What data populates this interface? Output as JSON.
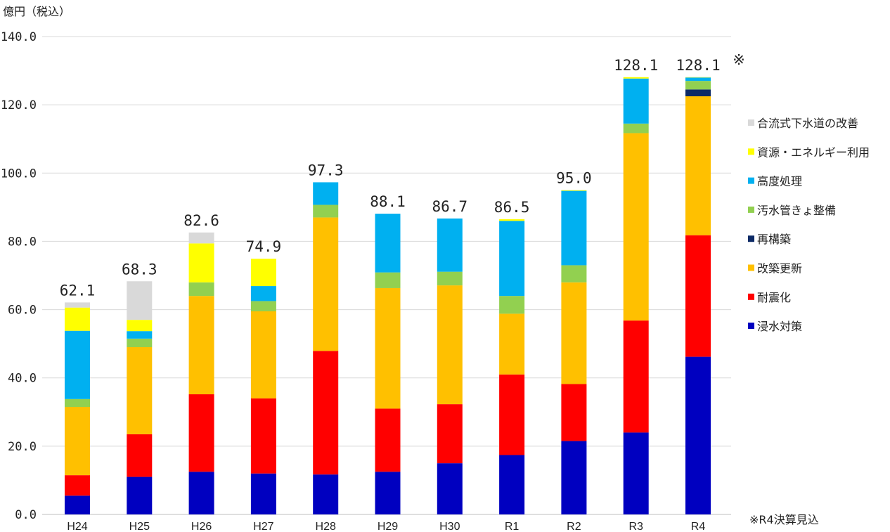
{
  "chart_data": {
    "type": "bar",
    "stacked": true,
    "ylabel": "億円（税込）",
    "ylim": [
      0,
      140
    ],
    "yticks": [
      "0.0",
      "20.0",
      "40.0",
      "60.0",
      "80.0",
      "100.0",
      "120.0",
      "140.0"
    ],
    "grid": true,
    "legend_position": "right",
    "categories": [
      "H24",
      "H25",
      "H26",
      "H27",
      "H28",
      "H29",
      "H30",
      "R1",
      "R2",
      "R3",
      "R4"
    ],
    "totals": [
      "62.1",
      "68.3",
      "82.6",
      "74.9",
      "97.3",
      "88.1",
      "86.7",
      "86.5",
      "95.0",
      "128.1",
      "128.1"
    ],
    "total_marks": [
      "",
      "",
      "",
      "",
      "",
      "",
      "",
      "",
      "",
      "",
      "※"
    ],
    "series": [
      {
        "name": "浸水対策",
        "color": "#0000c0",
        "values": [
          5.5,
          11.0,
          12.5,
          12.0,
          11.7,
          12.5,
          15.0,
          17.4,
          21.5,
          24.0,
          46.2
        ]
      },
      {
        "name": "耐震化",
        "color": "#ff0000",
        "values": [
          6.0,
          12.5,
          22.7,
          22.0,
          36.2,
          18.5,
          17.3,
          23.6,
          16.7,
          32.8,
          35.6
        ]
      },
      {
        "name": "改築更新",
        "color": "#ffc000",
        "values": [
          20.0,
          25.5,
          28.8,
          25.5,
          39.1,
          35.3,
          34.8,
          17.8,
          29.8,
          54.9,
          40.7
        ]
      },
      {
        "name": "再構築",
        "color": "#0d2a66",
        "values": [
          0,
          0,
          0,
          0,
          0,
          0,
          0,
          0,
          0,
          0,
          2.0
        ]
      },
      {
        "name": "汚水管きょ整備",
        "color": "#92d050",
        "values": [
          2.3,
          2.5,
          4.0,
          3.0,
          3.7,
          4.6,
          4.0,
          5.2,
          5.0,
          2.8,
          2.5
        ]
      },
      {
        "name": "高度処理",
        "color": "#00b0f0",
        "values": [
          20.0,
          2.2,
          0,
          4.4,
          6.6,
          17.2,
          15.6,
          22.0,
          21.8,
          13.2,
          1.0
        ]
      },
      {
        "name": "資源・エネルギー利用",
        "color": "#ffff00",
        "values": [
          6.8,
          3.3,
          11.4,
          8.0,
          0,
          0,
          0,
          0.5,
          0.2,
          0.4,
          0.1
        ]
      },
      {
        "name": "合流式下水道の改善",
        "color": "#d9d9d9",
        "values": [
          1.5,
          11.3,
          3.2,
          0,
          0,
          0,
          0,
          0,
          0,
          0,
          0
        ]
      }
    ],
    "legend_order": [
      "合流式下水道の改善",
      "資源・エネルギー利用",
      "高度処理",
      "汚水管きょ整備",
      "再構築",
      "改築更新",
      "耐震化",
      "浸水対策"
    ],
    "note": "※R4決算見込"
  }
}
